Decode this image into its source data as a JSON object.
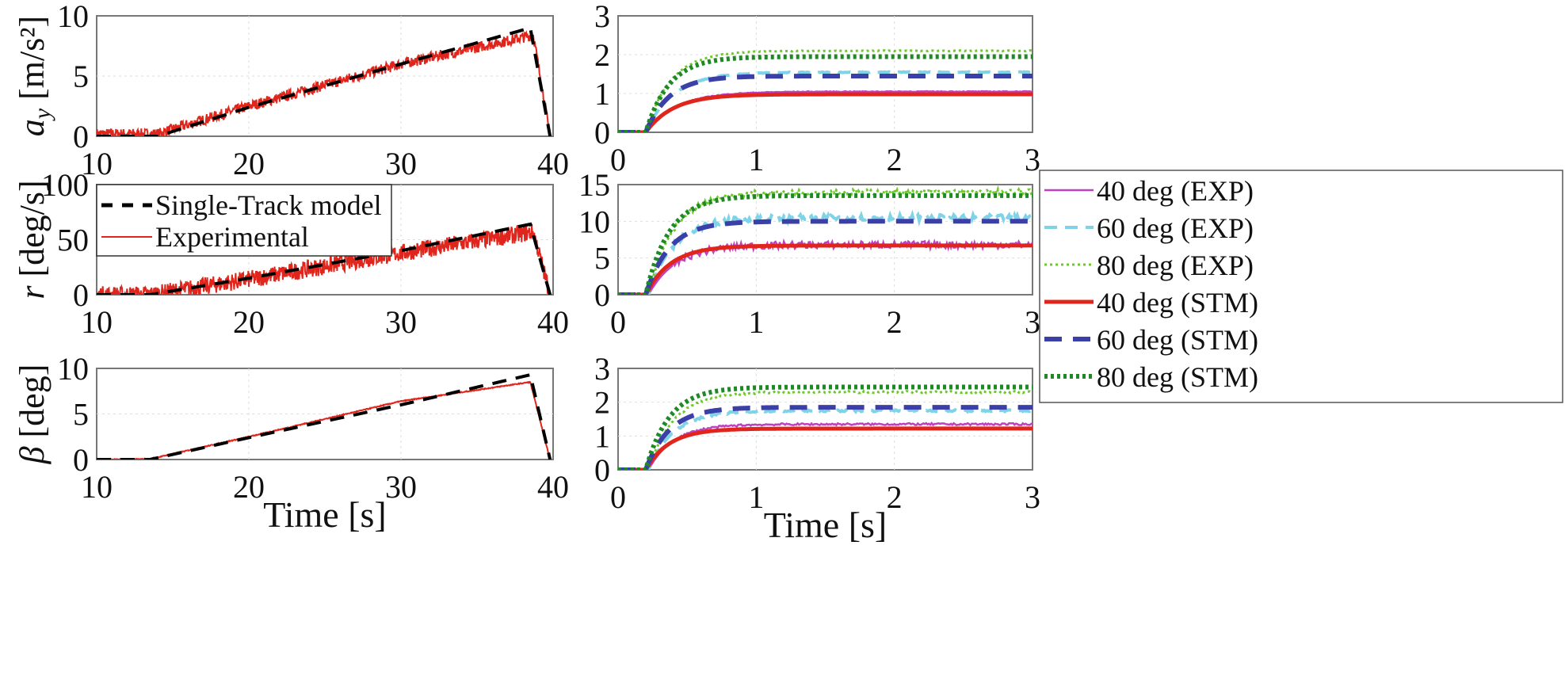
{
  "chart_data": [
    {
      "id": "ay-ramp",
      "type": "line",
      "ylabel_symbol": "a",
      "ylabel_sub": "y",
      "ylabel_unit": "[m/s²]",
      "xlim": [
        10,
        40
      ],
      "ylim": [
        0,
        10
      ],
      "xticks": [
        "10",
        "20",
        "30",
        "40"
      ],
      "yticks": [
        "0",
        "5",
        "10"
      ],
      "grid": true,
      "series": [
        {
          "name": "Single-Track model",
          "style": "dash",
          "color": "#000000",
          "points": [
            [
              10,
              0
            ],
            [
              14,
              0
            ],
            [
              20,
              2.4
            ],
            [
              30,
              6.0
            ],
            [
              38.5,
              9.0
            ],
            [
              39.8,
              0
            ]
          ]
        },
        {
          "name": "Experimental",
          "style": "solid",
          "color": "#e0261c",
          "noise": 0.45,
          "points": [
            [
              10,
              0.2
            ],
            [
              14,
              0.2
            ],
            [
              20,
              2.5
            ],
            [
              30,
              6.0
            ],
            [
              38.7,
              8.4
            ],
            [
              39.8,
              0
            ]
          ]
        }
      ]
    },
    {
      "id": "r-ramp",
      "type": "line",
      "ylabel_symbol": "r",
      "ylabel_unit": "[deg/s]",
      "xlim": [
        10,
        40
      ],
      "ylim": [
        0,
        100
      ],
      "xticks": [
        "10",
        "20",
        "30",
        "40"
      ],
      "yticks": [
        "0",
        "50",
        "100"
      ],
      "grid": true,
      "legend": {
        "placement": "top-left",
        "entries": [
          "Single-Track model",
          "Experimental"
        ]
      },
      "series": [
        {
          "name": "Single-Track model",
          "style": "dash",
          "color": "#000000",
          "points": [
            [
              10,
              0
            ],
            [
              13.5,
              0
            ],
            [
              20,
              15
            ],
            [
              30,
              40
            ],
            [
              38.5,
              64
            ],
            [
              39.8,
              0
            ]
          ]
        },
        {
          "name": "Experimental",
          "style": "solid",
          "color": "#e0261c",
          "noise": 0.8,
          "points": [
            [
              10,
              0
            ],
            [
              13.5,
              0
            ],
            [
              20,
              14
            ],
            [
              30,
              38
            ],
            [
              38.7,
              57
            ],
            [
              39.8,
              0
            ]
          ]
        }
      ]
    },
    {
      "id": "beta-ramp",
      "type": "line",
      "ylabel_symbol": "β",
      "ylabel_unit": "[deg]",
      "xlim": [
        10,
        40
      ],
      "ylim": [
        0,
        10
      ],
      "xticks": [
        "10",
        "20",
        "30",
        "40"
      ],
      "yticks": [
        "0",
        "5",
        "10"
      ],
      "grid": true,
      "xlabel": "Time [s]",
      "series": [
        {
          "name": "Single-Track model",
          "style": "dash",
          "color": "#000000",
          "points": [
            [
              10,
              0
            ],
            [
              13.5,
              0
            ],
            [
              20,
              2.4
            ],
            [
              30,
              6.0
            ],
            [
              38.5,
              9.3
            ],
            [
              39.8,
              0
            ]
          ]
        },
        {
          "name": "Experimental",
          "style": "solid",
          "color": "#e0261c",
          "noise": 0.05,
          "points": [
            [
              10,
              0
            ],
            [
              13.5,
              0.05
            ],
            [
              20,
              2.5
            ],
            [
              30,
              6.4
            ],
            [
              38.5,
              8.5
            ],
            [
              39.8,
              0
            ]
          ]
        }
      ]
    },
    {
      "id": "ay-step",
      "type": "line",
      "xlim": [
        0,
        3
      ],
      "ylim": [
        0,
        3
      ],
      "xticks": [
        "0",
        "1",
        "2",
        "3"
      ],
      "yticks": [
        "0",
        "1",
        "2",
        "3"
      ],
      "grid": true,
      "series": [
        {
          "name": "40 deg (EXP)",
          "final": 1.05,
          "delay": 0.2,
          "tau": 0.22,
          "noise": 0.01
        },
        {
          "name": "60 deg (EXP)",
          "final": 1.55,
          "delay": 0.2,
          "tau": 0.2,
          "noise": 0.01
        },
        {
          "name": "80 deg (EXP)",
          "final": 2.1,
          "delay": 0.2,
          "tau": 0.18,
          "noise": 0.01
        },
        {
          "name": "40 deg (STM)",
          "final": 0.98,
          "delay": 0.2,
          "tau": 0.2
        },
        {
          "name": "60 deg (STM)",
          "final": 1.45,
          "delay": 0.2,
          "tau": 0.17
        },
        {
          "name": "80 deg (STM)",
          "final": 1.95,
          "delay": 0.2,
          "tau": 0.17
        }
      ]
    },
    {
      "id": "r-step",
      "type": "line",
      "xlim": [
        0,
        3
      ],
      "ylim": [
        0,
        15
      ],
      "xticks": [
        "0",
        "1",
        "2",
        "3"
      ],
      "yticks": [
        "0",
        "5",
        "10",
        "15"
      ],
      "grid": true,
      "series": [
        {
          "name": "40 deg (EXP)",
          "final": 6.8,
          "delay": 0.22,
          "tau": 0.2,
          "noise": 0.5
        },
        {
          "name": "60 deg (EXP)",
          "final": 10.5,
          "delay": 0.22,
          "tau": 0.18,
          "noise": 0.4
        },
        {
          "name": "80 deg (EXP)",
          "final": 14.0,
          "delay": 0.22,
          "tau": 0.18,
          "noise": 0.35
        },
        {
          "name": "40 deg (STM)",
          "final": 6.7,
          "delay": 0.2,
          "tau": 0.18
        },
        {
          "name": "60 deg (STM)",
          "final": 10.0,
          "delay": 0.2,
          "tau": 0.17
        },
        {
          "name": "80 deg (STM)",
          "final": 13.5,
          "delay": 0.2,
          "tau": 0.17
        }
      ]
    },
    {
      "id": "beta-step",
      "type": "line",
      "xlim": [
        0,
        3
      ],
      "ylim": [
        0,
        3
      ],
      "xticks": [
        "0",
        "1",
        "2",
        "3"
      ],
      "yticks": [
        "0",
        "1",
        "2",
        "3"
      ],
      "grid": true,
      "xlabel": "Time [s]",
      "series": [
        {
          "name": "40 deg (EXP)",
          "final": 1.35,
          "delay": 0.22,
          "tau": 0.18,
          "noise": 0.03
        },
        {
          "name": "60 deg (EXP)",
          "final": 1.75,
          "delay": 0.22,
          "tau": 0.18,
          "noise": 0.03
        },
        {
          "name": "80 deg (EXP)",
          "final": 2.3,
          "delay": 0.22,
          "tau": 0.18,
          "noise": 0.03
        },
        {
          "name": "40 deg (STM)",
          "final": 1.22,
          "delay": 0.2,
          "tau": 0.17
        },
        {
          "name": "60 deg (STM)",
          "final": 1.85,
          "delay": 0.2,
          "tau": 0.17
        },
        {
          "name": "80 deg (STM)",
          "final": 2.45,
          "delay": 0.2,
          "tau": 0.17
        }
      ]
    }
  ],
  "step_legend": [
    {
      "label": "40 deg (EXP)",
      "color": "#c040c0",
      "style": "solid"
    },
    {
      "label": "60 deg (EXP)",
      "color": "#7fd3e6",
      "style": "dash"
    },
    {
      "label": "80 deg (EXP)",
      "color": "#6cc92a",
      "style": "dot"
    },
    {
      "label": "40 deg (STM)",
      "color": "#e0261c",
      "style": "thick"
    },
    {
      "label": "60 deg (STM)",
      "color": "#3b3fa8",
      "style": "thickdash"
    },
    {
      "label": "80 deg (STM)",
      "color": "#1f8a25",
      "style": "thickdot"
    }
  ],
  "xlabel": "Time [s]"
}
